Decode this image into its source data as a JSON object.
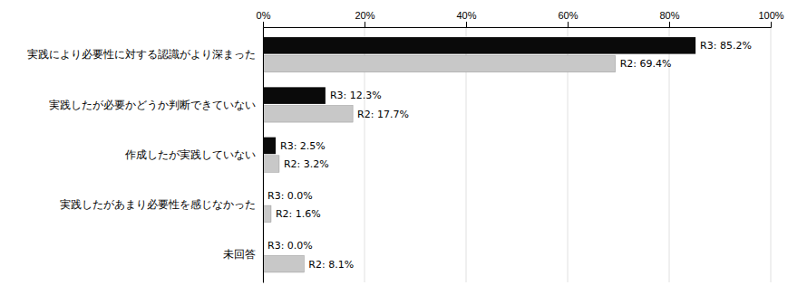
{
  "chart_data": {
    "type": "bar",
    "orientation": "horizontal",
    "categories": [
      "実践により必要性に対する認識がより深まった",
      "実践したが必要かどうか判断できていない",
      "作成したが実践していない",
      "実践したがあまり必要性を感じなかった",
      "未回答"
    ],
    "series": [
      {
        "name": "R3",
        "color": "#0a0a0a",
        "values": [
          85.2,
          12.3,
          2.5,
          0.0,
          0.0
        ],
        "value_labels": [
          "R3: 85.2%",
          "R3: 12.3%",
          "R3: 2.5%",
          "R3: 0.0%",
          "R3: 0.0%"
        ]
      },
      {
        "name": "R2",
        "color": "#c8c8c8",
        "values": [
          69.4,
          17.7,
          3.2,
          1.6,
          8.1
        ],
        "value_labels": [
          "R2: 69.4%",
          "R2: 17.7%",
          "R2: 3.2%",
          "R2: 1.6%",
          "R2: 8.1%"
        ]
      }
    ],
    "xlim": [
      0,
      100
    ],
    "xticks": [
      {
        "value": 0,
        "label": "0%"
      },
      {
        "value": 20,
        "label": "20%"
      },
      {
        "value": 40,
        "label": "40%"
      },
      {
        "value": 60,
        "label": "60%"
      },
      {
        "value": 80,
        "label": "80%"
      },
      {
        "value": 100,
        "label": "100%"
      }
    ],
    "grid": true,
    "data_labels": true
  }
}
